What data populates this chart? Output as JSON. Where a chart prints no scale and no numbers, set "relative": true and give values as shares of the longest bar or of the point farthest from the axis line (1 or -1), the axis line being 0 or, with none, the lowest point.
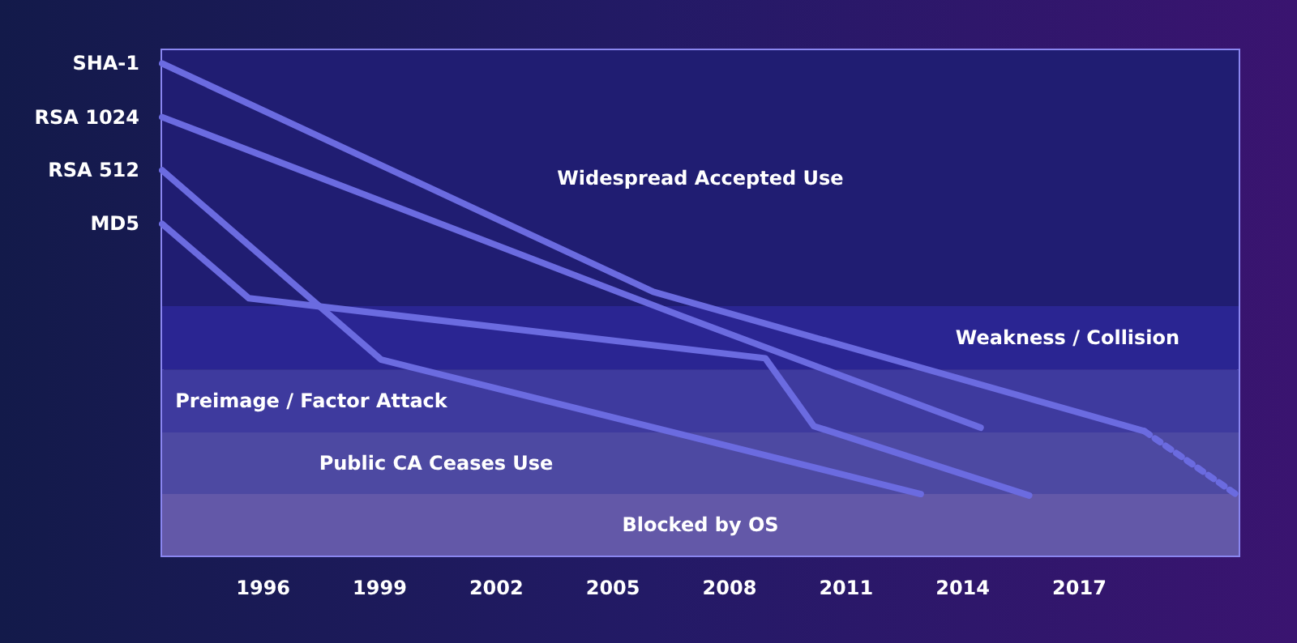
{
  "chart_data": {
    "type": "line",
    "relative": true,
    "marker": "none",
    "line_style": "solid",
    "grid": false,
    "legend": false,
    "tick_labels": "x",
    "xlim": [
      1993.4,
      2021.1
    ],
    "xticks": [
      1996,
      1999,
      2002,
      2005,
      2008,
      2011,
      2014,
      2017
    ],
    "series": [
      {
        "name": "SHA-1",
        "color": "#6b6be0",
        "x": [
          1993.4,
          2006.04,
          2018.67
        ],
        "values": [
          1,
          0.536,
          0.253
        ]
      },
      {
        "color": "#6b6be0",
        "line_style": "dotted",
        "x": [
          2018.67,
          2021.08
        ],
        "values": [
          0.253,
          0.122
        ]
      },
      {
        "name": "RSA 1024",
        "color": "#6b6be0",
        "x": [
          1993.4,
          2006.75,
          2014.46
        ],
        "values": [
          0.891,
          0.487,
          0.26
        ]
      },
      {
        "name": "RSA 512",
        "color": "#6b6be0",
        "x": [
          1993.4,
          1999.04,
          2012.92
        ],
        "values": [
          0.783,
          0.398,
          0.125
        ]
      },
      {
        "name": "MD5",
        "color": "#6b6be0",
        "x": [
          1993.4,
          1995.63,
          2008.92,
          2010.17,
          2015.71
        ],
        "values": [
          0.674,
          0.523,
          0.401,
          0.263,
          0.122
        ]
      }
    ],
    "bands": [
      {
        "axis": "y",
        "from": 0.507,
        "to": 1.027,
        "label": "Widespread Accepted Use",
        "color": "#201d72"
      },
      {
        "axis": "y",
        "from": 0.378,
        "to": 0.507,
        "label": "Weakness / Collision",
        "color": "#2a2592"
      },
      {
        "axis": "y",
        "from": 0.25,
        "to": 0.378,
        "label": "Preimage / Factor Attack",
        "color": "#3e3a9e"
      },
      {
        "axis": "y",
        "from": 0.125,
        "to": 0.25,
        "label": "Public CA Ceases Use",
        "color": "#4d49a2"
      },
      {
        "axis": "y",
        "from": 0,
        "to": 0.125,
        "label": "Blocked by OS",
        "color": "#6358a8"
      }
    ]
  }
}
